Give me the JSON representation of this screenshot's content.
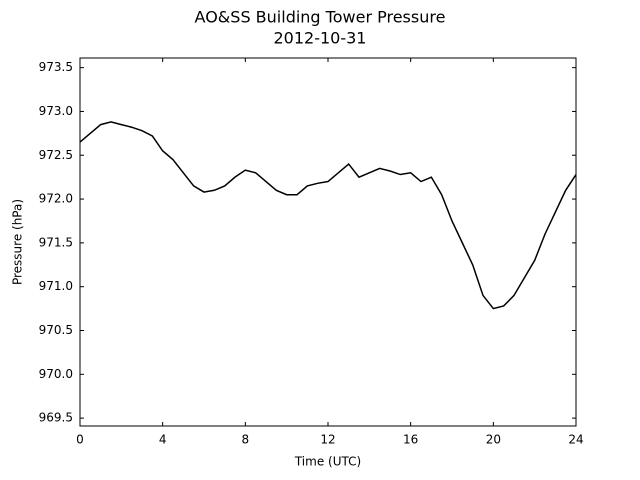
{
  "chart_data": {
    "type": "line",
    "title": "AO&SS Building Tower Pressure",
    "subtitle": "2012-10-31",
    "x_label": "Time (UTC)",
    "y_label": "Pressure (hPa)",
    "x": [
      0,
      0.5,
      1,
      1.5,
      2,
      2.5,
      3,
      3.5,
      4,
      4.5,
      5,
      5.5,
      6,
      6.5,
      7,
      7.5,
      8,
      8.5,
      9,
      9.5,
      10,
      10.5,
      11,
      11.5,
      12,
      12.5,
      13,
      13.5,
      14,
      14.5,
      15,
      15.5,
      16,
      16.5,
      17,
      17.5,
      18,
      18.5,
      19,
      19.5,
      20,
      20.5,
      21,
      21.5,
      22,
      22.5,
      23,
      23.5,
      24
    ],
    "series": [
      {
        "name": "Pressure",
        "color": "#000000",
        "values": [
          972.65,
          972.75,
          972.85,
          972.88,
          972.85,
          972.82,
          972.78,
          972.72,
          972.55,
          972.45,
          972.3,
          972.15,
          972.08,
          972.1,
          972.15,
          972.25,
          972.33,
          972.3,
          972.2,
          972.1,
          972.05,
          972.05,
          972.15,
          972.18,
          972.2,
          972.3,
          972.4,
          972.25,
          972.3,
          972.35,
          972.32,
          972.28,
          972.3,
          972.2,
          972.25,
          972.05,
          971.75,
          971.5,
          971.25,
          970.9,
          970.75,
          970.78,
          970.9,
          971.1,
          971.3,
          971.6,
          971.85,
          972.1,
          972.28
        ]
      }
    ],
    "xlim": [
      0,
      24
    ],
    "xticks": [
      0,
      4,
      8,
      12,
      16,
      20,
      24
    ],
    "ylim": [
      969.41,
      973.61
    ],
    "yticks": [
      969.5,
      {
        "value": 970,
        "label": "970.0"
      },
      970.5,
      {
        "value": 971,
        "label": "971.0"
      },
      971.5,
      {
        "value": 972,
        "label": "972.0"
      },
      972.5,
      {
        "value": 973,
        "label": "973.0"
      },
      973.5
    ],
    "grid": false
  }
}
